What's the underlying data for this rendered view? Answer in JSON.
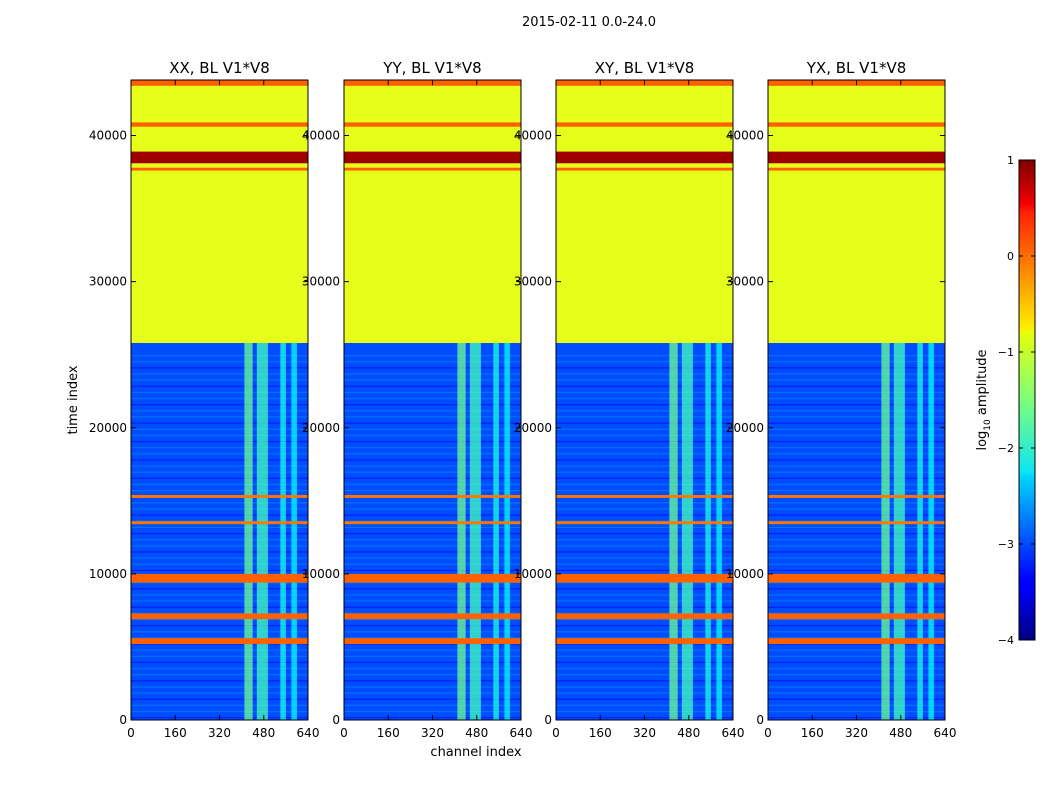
{
  "suptitle": "2015-02-11 0.0-24.0",
  "xlabel": "channel index",
  "ylabel": "time index",
  "colorbar": {
    "label_main": "log",
    "label_sub": "10",
    "label_rest": " amplitude",
    "ticks": [
      "1",
      "0",
      "−1",
      "−2",
      "−3",
      "−4"
    ],
    "tick_values": [
      1,
      0,
      -1,
      -2,
      -3,
      -4
    ],
    "range": [
      -4,
      1
    ],
    "colormap": "jet"
  },
  "panels": [
    {
      "title": "XX, BL V1*V8"
    },
    {
      "title": "YY, BL V1*V8"
    },
    {
      "title": "XY, BL V1*V8"
    },
    {
      "title": "YX, BL V1*V8"
    }
  ],
  "x_ticks": [
    "0",
    "160",
    "320",
    "480",
    "640"
  ],
  "y_ticks": [
    "0",
    "10000",
    "20000",
    "30000",
    "40000"
  ],
  "chart_data": {
    "type": "heatmap",
    "title": "2015-02-11 0.0-24.0",
    "xlabel": "channel index",
    "ylabel": "time index",
    "xlim": [
      0,
      640
    ],
    "ylim": [
      0,
      43800
    ],
    "x_tick_values": [
      0,
      160,
      320,
      480,
      640
    ],
    "y_tick_values": [
      0,
      10000,
      20000,
      30000,
      40000
    ],
    "value_label": "log10 amplitude",
    "value_range": [
      -4,
      1
    ],
    "panels": [
      "XX, BL V1*V8",
      "YY, BL V1*V8",
      "XY, BL V1*V8",
      "YX, BL V1*V8"
    ],
    "background_value": -3,
    "flagged_block": {
      "t_start": 25800,
      "t_end": 43800,
      "value": -1
    },
    "bands": [
      {
        "t_start": 9400,
        "t_end": 10000,
        "value": -0.1
      },
      {
        "t_start": 6900,
        "t_end": 7300,
        "value": -0.1
      },
      {
        "t_start": 5200,
        "t_end": 5600,
        "value": -0.1
      },
      {
        "t_start": 13400,
        "t_end": 13600,
        "value": -0.2
      },
      {
        "t_start": 15200,
        "t_end": 15400,
        "value": -0.2
      },
      {
        "t_start": 38100,
        "t_end": 38900,
        "value": 0.85
      },
      {
        "t_start": 37600,
        "t_end": 37800,
        "value": -0.1
      },
      {
        "t_start": 40600,
        "t_end": 40900,
        "value": -0.1
      },
      {
        "t_start": 43400,
        "t_end": 43800,
        "value": -0.1
      }
    ],
    "rfi_channels": [
      {
        "ch_start": 410,
        "ch_end": 440,
        "value": -1.6
      },
      {
        "ch_start": 455,
        "ch_end": 495,
        "value": -1.8
      },
      {
        "ch_start": 540,
        "ch_end": 560,
        "value": -2.0
      },
      {
        "ch_start": 580,
        "ch_end": 600,
        "value": -2.1
      }
    ]
  }
}
